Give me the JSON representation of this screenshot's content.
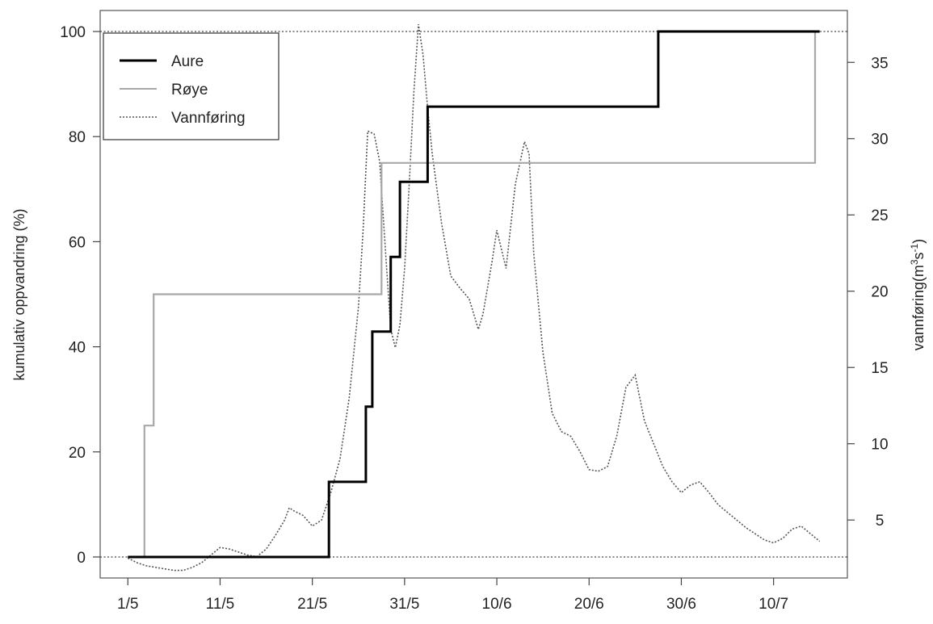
{
  "chart_data": {
    "type": "line",
    "xlabel": "",
    "ylabel_left": "kumulativ oppvandring (%)",
    "ylabel_right": "vannføring(m",
    "ylabel_right_sup": "3",
    "ylabel_right_mid": "s",
    "ylabel_right_sup2": "-1",
    "ylabel_right_end": ")",
    "x_ticks": [
      {
        "day": 0,
        "label": "1/5"
      },
      {
        "day": 10,
        "label": "11/5"
      },
      {
        "day": 20,
        "label": "21/5"
      },
      {
        "day": 30,
        "label": "31/5"
      },
      {
        "day": 40,
        "label": "10/6"
      },
      {
        "day": 50,
        "label": "20/6"
      },
      {
        "day": 60,
        "label": "30/6"
      },
      {
        "day": 70,
        "label": "10/7"
      }
    ],
    "x_range": [
      -3,
      78
    ],
    "y_left_ticks": [
      0,
      20,
      40,
      60,
      80,
      100
    ],
    "y_left_range": [
      -4,
      104
    ],
    "y_right_ticks": [
      5,
      10,
      15,
      20,
      25,
      30,
      35
    ],
    "y_right_range": [
      1.2,
      38.4
    ],
    "legend": {
      "position": "top-left",
      "entries": [
        "Aure",
        "Røye",
        "Vannføring"
      ]
    },
    "reference_lines_left": [
      0,
      100
    ],
    "series": [
      {
        "name": "Aure",
        "style": "step",
        "color": "#000000",
        "points": [
          [
            0,
            0
          ],
          [
            21.8,
            0
          ],
          [
            21.8,
            14.3
          ],
          [
            25.8,
            14.3
          ],
          [
            25.8,
            28.6
          ],
          [
            26.5,
            28.6
          ],
          [
            26.5,
            42.9
          ],
          [
            28.5,
            42.9
          ],
          [
            28.5,
            57.1
          ],
          [
            29.5,
            57.1
          ],
          [
            29.5,
            71.4
          ],
          [
            32.5,
            71.4
          ],
          [
            32.5,
            85.7
          ],
          [
            57.5,
            85.7
          ],
          [
            57.5,
            100
          ],
          [
            75,
            100
          ]
        ]
      },
      {
        "name": "Røye",
        "style": "step",
        "color": "#a8a8a8",
        "points": [
          [
            1.8,
            0
          ],
          [
            1.8,
            25
          ],
          [
            2.8,
            25
          ],
          [
            2.8,
            50
          ],
          [
            27.5,
            50
          ],
          [
            27.5,
            75
          ],
          [
            74.5,
            75
          ],
          [
            74.5,
            100
          ],
          [
            75,
            100
          ]
        ]
      },
      {
        "name": "Vannføring",
        "style": "dotted",
        "color": "#555555",
        "axis": "right",
        "points": [
          [
            0,
            2.5
          ],
          [
            1,
            2.2
          ],
          [
            2,
            2
          ],
          [
            3,
            1.9
          ],
          [
            4,
            1.8
          ],
          [
            5,
            1.7
          ],
          [
            6,
            1.7
          ],
          [
            7,
            1.9
          ],
          [
            8,
            2.2
          ],
          [
            9,
            2.7
          ],
          [
            10,
            3.2
          ],
          [
            11,
            3.1
          ],
          [
            12,
            2.9
          ],
          [
            13,
            2.7
          ],
          [
            14,
            2.6
          ],
          [
            15,
            3.1
          ],
          [
            16,
            4
          ],
          [
            17,
            5
          ],
          [
            17.5,
            5.8
          ],
          [
            18,
            5.6
          ],
          [
            19,
            5.3
          ],
          [
            20,
            4.6
          ],
          [
            21,
            5
          ],
          [
            22,
            6.8
          ],
          [
            23,
            9
          ],
          [
            24,
            13
          ],
          [
            25,
            19
          ],
          [
            25.5,
            24
          ],
          [
            26,
            30.5
          ],
          [
            26.7,
            30.3
          ],
          [
            27.3,
            28.5
          ],
          [
            28,
            22
          ],
          [
            28.5,
            17.5
          ],
          [
            29,
            16.3
          ],
          [
            29.5,
            17.8
          ],
          [
            30,
            21.5
          ],
          [
            30.5,
            27
          ],
          [
            31,
            33
          ],
          [
            31.5,
            37.5
          ],
          [
            32,
            35.5
          ],
          [
            32.5,
            32
          ],
          [
            33,
            29
          ],
          [
            34,
            24.5
          ],
          [
            35,
            21
          ],
          [
            36,
            20.2
          ],
          [
            37,
            19.5
          ],
          [
            38,
            17.5
          ],
          [
            38.5,
            18.5
          ],
          [
            39.5,
            22
          ],
          [
            40,
            24
          ],
          [
            41,
            21.5
          ],
          [
            42,
            27
          ],
          [
            43,
            29.8
          ],
          [
            43.5,
            29
          ],
          [
            44,
            22.5
          ],
          [
            45,
            16
          ],
          [
            46,
            12
          ],
          [
            47,
            10.8
          ],
          [
            48,
            10.5
          ],
          [
            49,
            9.5
          ],
          [
            50,
            8.3
          ],
          [
            51,
            8.2
          ],
          [
            52,
            8.5
          ],
          [
            53,
            10.5
          ],
          [
            54,
            13.7
          ],
          [
            55,
            14.5
          ],
          [
            56,
            11.5
          ],
          [
            57,
            10
          ],
          [
            58,
            8.5
          ],
          [
            59,
            7.5
          ],
          [
            60,
            6.8
          ],
          [
            61,
            7.3
          ],
          [
            62,
            7.5
          ],
          [
            63,
            6.8
          ],
          [
            64,
            6
          ],
          [
            65,
            5.5
          ],
          [
            66,
            5
          ],
          [
            67,
            4.5
          ],
          [
            68,
            4.1
          ],
          [
            69,
            3.7
          ],
          [
            70,
            3.5
          ],
          [
            71,
            3.8
          ],
          [
            72,
            4.4
          ],
          [
            73,
            4.6
          ],
          [
            74,
            4.1
          ],
          [
            75,
            3.6
          ]
        ]
      }
    ]
  }
}
